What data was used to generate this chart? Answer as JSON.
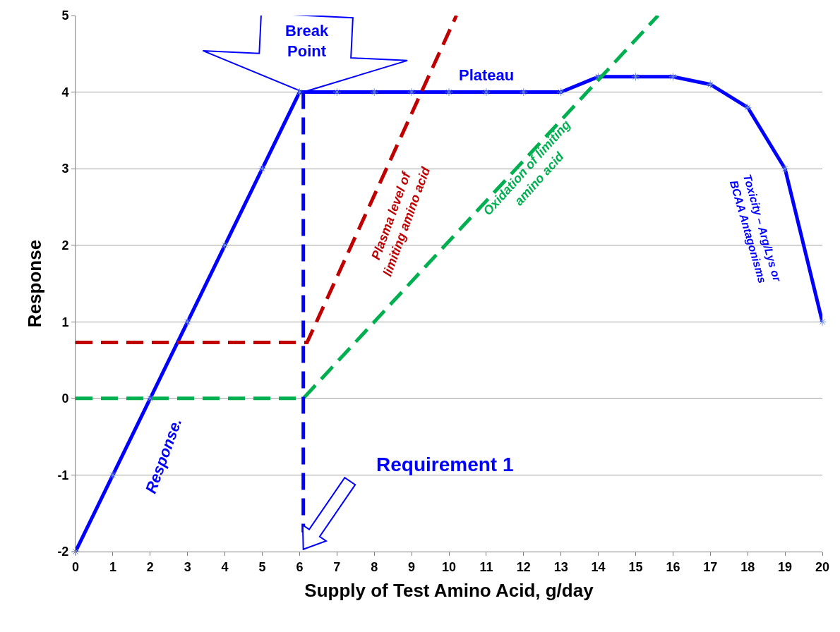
{
  "chart_data": {
    "type": "line",
    "xlabel": "Supply of Test Amino Acid, g/day",
    "ylabel": "Response",
    "xlim": [
      0,
      20
    ],
    "xticks": [
      0,
      1,
      2,
      3,
      4,
      5,
      6,
      7,
      8,
      9,
      10,
      11,
      12,
      13,
      14,
      15,
      16,
      17,
      18,
      19,
      20
    ],
    "ylim": [
      -2,
      5
    ],
    "yticks": [
      -2,
      -1,
      0,
      1,
      2,
      3,
      4,
      5
    ],
    "grid": "y",
    "series": [
      {
        "color": "#0000ff",
        "marker": "cross",
        "line_style": "solid",
        "x": [
          0,
          1,
          2,
          3,
          4,
          5,
          6,
          7,
          8,
          9,
          10,
          11,
          12,
          13,
          14,
          15,
          16,
          17,
          18,
          19,
          20
        ],
        "values": [
          -2,
          -1,
          0,
          1,
          2,
          3,
          4,
          4,
          4,
          4,
          4,
          4,
          4,
          4,
          4.2,
          4.2,
          4.2,
          4.1,
          3.8,
          3,
          1
        ]
      },
      {
        "color": "#c00000",
        "marker": "none",
        "line_style": "dashed",
        "x": [
          0,
          6.2,
          10.2
        ],
        "values": [
          0.73,
          0.73,
          5
        ]
      },
      {
        "color": "#00b050",
        "marker": "none",
        "line_style": "dashed",
        "x": [
          0,
          6.1,
          15.6
        ],
        "values": [
          0,
          0,
          5
        ]
      },
      {
        "color": "#0000ff",
        "marker": "none",
        "line_style": "dashed",
        "x": [
          6.1,
          6.1
        ],
        "values": [
          4,
          -1.75
        ]
      }
    ],
    "annotations": [
      {
        "text": "Break\nPoint",
        "x": 6.1,
        "y": 4
      },
      "Plateau",
      "Plasma level of\nlimiting amino acid",
      "Oxidation of limiting\namino acid",
      "Toxicity – Arg/Lys or\nBCAA Antagonisms",
      "Response.",
      "Requirement 1"
    ]
  }
}
